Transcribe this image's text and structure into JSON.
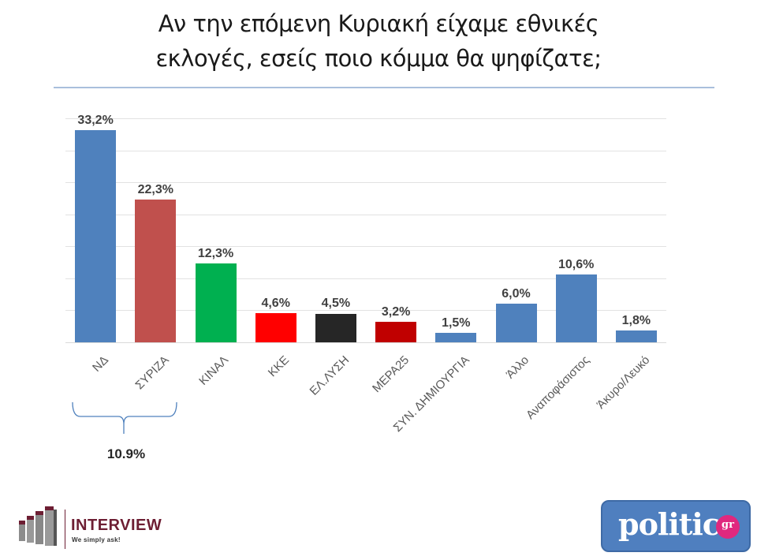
{
  "title": {
    "line1": "Αν την επόμενη Κυριακή είχαμε εθνικές",
    "line2": "εκλογές, εσείς ποιο κόμμα θα ψηφίζατε;"
  },
  "chart_data": {
    "type": "bar",
    "title": "Αν την επόμενη Κυριακή είχαμε εθνικές εκλογές, εσείς ποιο κόμμα θα ψηφίζατε;",
    "categories": [
      "ΝΔ",
      "ΣΥΡΙΖΑ",
      "ΚΙΝΑΛ",
      "ΚΚΕ",
      "ΕΛ.ΛΥΣΗ",
      "ΜΕΡΑ25",
      "ΣΥΝ. ΔΗΜΙΟΥΡΓΙΑ",
      "Άλλο",
      "Αναποφάσιστος",
      "Άκυρο/Λευκό"
    ],
    "values": [
      33.2,
      22.3,
      12.3,
      4.6,
      4.5,
      3.2,
      1.5,
      6.0,
      10.6,
      1.8
    ],
    "value_labels": [
      "33,2%",
      "22,3%",
      "12,3%",
      "4,6%",
      "4,5%",
      "3,2%",
      "1,5%",
      "6,0%",
      "10,6%",
      "1,8%"
    ],
    "colors": [
      "#4f81bd",
      "#c0504d",
      "#00b050",
      "#ff0000",
      "#262626",
      "#c00000",
      "#4f81bd",
      "#4f81bd",
      "#4f81bd",
      "#4f81bd"
    ],
    "xlabel": "",
    "ylabel": "",
    "ylim": [
      0,
      35
    ],
    "grid": true,
    "gridlines": [
      0,
      5,
      10,
      15,
      20,
      25,
      30,
      35
    ],
    "legend": null,
    "annotations": [
      {
        "type": "brace",
        "spans": [
          "ΝΔ",
          "ΣΥΡΙΖΑ"
        ],
        "label": "10.9%"
      }
    ]
  },
  "annotation": {
    "gap_label": "10.9%"
  },
  "logos": {
    "left": {
      "name": "INTERVIEW",
      "tagline": "We simply ask!",
      "color": "#6d1e33"
    },
    "right": {
      "name": "politic",
      "suffix": "gr",
      "bg_color": "#4f7fbf",
      "accent_color": "#e0287e"
    }
  }
}
